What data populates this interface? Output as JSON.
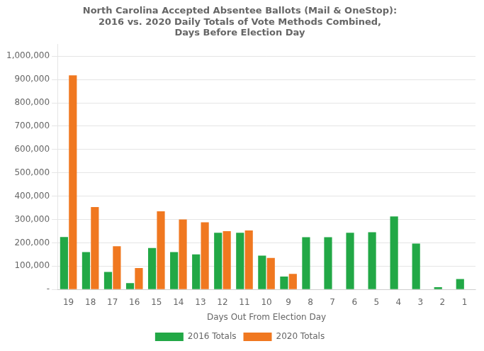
{
  "chart_data": {
    "type": "bar",
    "title": "North Carolina Accepted Absentee Ballots (Mail & OneStop):\n2016 vs. 2020 Daily Totals of Vote Methods Combined,\nDays Before Election Day",
    "xlabel": "Days Out From Election Day",
    "categories": [
      19,
      18,
      17,
      16,
      15,
      14,
      13,
      12,
      11,
      10,
      9,
      8,
      7,
      6,
      5,
      4,
      3,
      2,
      1
    ],
    "series": [
      {
        "name": "2016 Totals",
        "color": "#22A846",
        "values": [
          225000,
          160000,
          75000,
          27000,
          178000,
          160000,
          150000,
          243000,
          243000,
          145000,
          55000,
          224000,
          224000,
          243000,
          245000,
          313000,
          197000,
          10000,
          45000
        ]
      },
      {
        "name": "2020 Totals",
        "color": "#F07820",
        "values": [
          918000,
          353000,
          185000,
          92000,
          335000,
          300000,
          288000,
          250000,
          253000,
          135000,
          67000,
          0,
          0,
          0,
          0,
          0,
          0,
          0,
          0
        ]
      }
    ],
    "ylim": [
      0,
      1050000
    ],
    "yticks": [
      {
        "value": 0,
        "label": "-"
      },
      {
        "value": 100000,
        "label": "100,000"
      },
      {
        "value": 200000,
        "label": "200,000"
      },
      {
        "value": 300000,
        "label": "300,000"
      },
      {
        "value": 400000,
        "label": "400,000"
      },
      {
        "value": 500000,
        "label": "500,000"
      },
      {
        "value": 600000,
        "label": "600,000"
      },
      {
        "value": 700000,
        "label": "700,000"
      },
      {
        "value": 800000,
        "label": "800,000"
      },
      {
        "value": 900000,
        "label": "900,000"
      },
      {
        "value": 1000000,
        "label": "1,000,000"
      }
    ],
    "grid": true,
    "legend": "bottom"
  }
}
